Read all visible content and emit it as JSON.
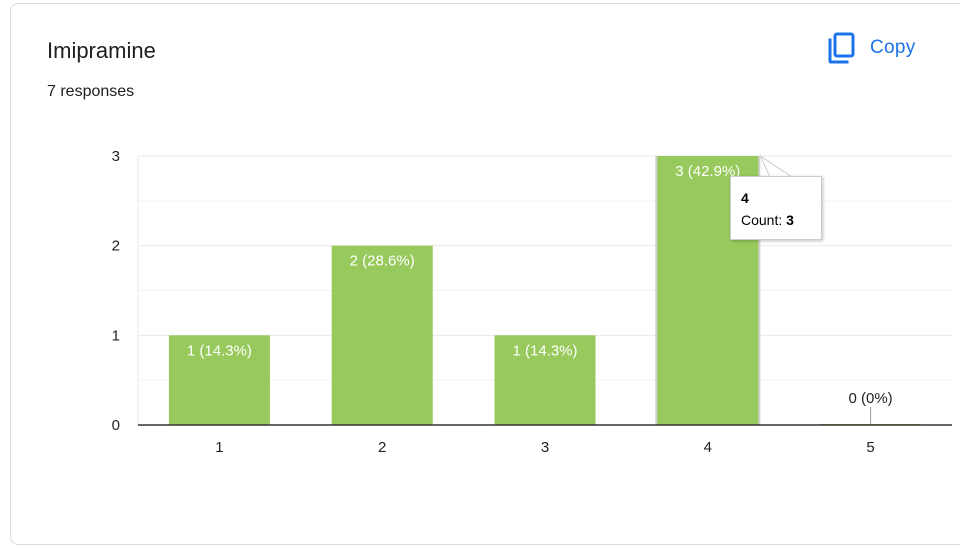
{
  "card": {
    "title": "Imipramine",
    "responses": "7 responses",
    "copy_label": "Copy"
  },
  "colors": {
    "bar": "#97c95c",
    "accent": "#1a73e8",
    "grid": "#e8e8e8",
    "axis": "#333333"
  },
  "tooltip": {
    "title": "4",
    "count_label": "Count: ",
    "count_value": "3"
  },
  "chart_data": {
    "type": "bar",
    "categories": [
      "1",
      "2",
      "3",
      "4",
      "5"
    ],
    "values": [
      1,
      2,
      1,
      3,
      0
    ],
    "data_labels": [
      "1 (14.3%)",
      "2 (28.6%)",
      "1 (14.3%)",
      "3 (42.9%)",
      "0 (0%)"
    ],
    "y_ticks": [
      "0",
      "1",
      "2",
      "3"
    ],
    "ylim": [
      0,
      3
    ],
    "xlabel": "",
    "ylabel": "",
    "grid": true,
    "highlighted_category": "4"
  }
}
